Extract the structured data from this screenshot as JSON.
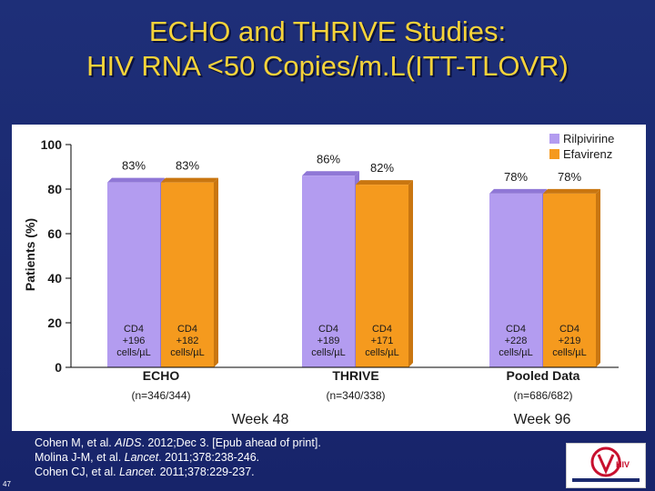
{
  "title_line1": "ECHO and THRIVE Studies:",
  "title_line2": "HIV RNA <50 Copies/m.L(ITT-TLOVR)",
  "chart_data": {
    "type": "bar",
    "ylabel": "Patients (%)",
    "ylim": [
      0,
      100
    ],
    "yticks": [
      0,
      20,
      40,
      60,
      80,
      100
    ],
    "grid": false,
    "legend_position": "top-right",
    "colors": {
      "Rilpivirine": "#b39cf0",
      "Efavirenz": "#f59a1e",
      "text": "#1a1a1a"
    },
    "groups": [
      {
        "label": "ECHO",
        "n_label": "(n=346/344)",
        "values": [
          83,
          83
        ],
        "value_labels": [
          "83%",
          "83%"
        ],
        "cd4_labels": [
          "CD4\n+196\ncells/µL",
          "CD4\n+182\ncells/µL"
        ]
      },
      {
        "label": "THRIVE",
        "n_label": "(n=340/338)",
        "values": [
          86,
          82
        ],
        "value_labels": [
          "86%",
          "82%"
        ],
        "cd4_labels": [
          "CD4\n+189\ncells/µL",
          "CD4\n+171\ncells/µL"
        ]
      },
      {
        "label": "Pooled Data",
        "n_label": "(n=686/682)",
        "values": [
          78,
          78
        ],
        "value_labels": [
          "78%",
          "78%"
        ],
        "cd4_labels": [
          "CD4\n+228\ncells/µL",
          "CD4\n+219\ncells/µL"
        ]
      }
    ],
    "series": [
      {
        "name": "Rilpivirine"
      },
      {
        "name": "Efavirenz"
      }
    ],
    "week_labels": [
      "Week 48",
      "Week 96"
    ]
  },
  "references": [
    {
      "pre": "Cohen M, et al. ",
      "italic": "AIDS",
      "post": ". 2012;Dec 3. [Epub ahead of print]."
    },
    {
      "pre": "Molina J-M, et al. ",
      "italic": "Lancet",
      "post": ". 2011;378:238-246."
    },
    {
      "pre": "Cohen CJ, et al. ",
      "italic": "Lancet",
      "post": ". 2011;378:229-237."
    }
  ],
  "slide_number": "47",
  "logo_text": "CLINICAL CARE OPTIONS HIV"
}
